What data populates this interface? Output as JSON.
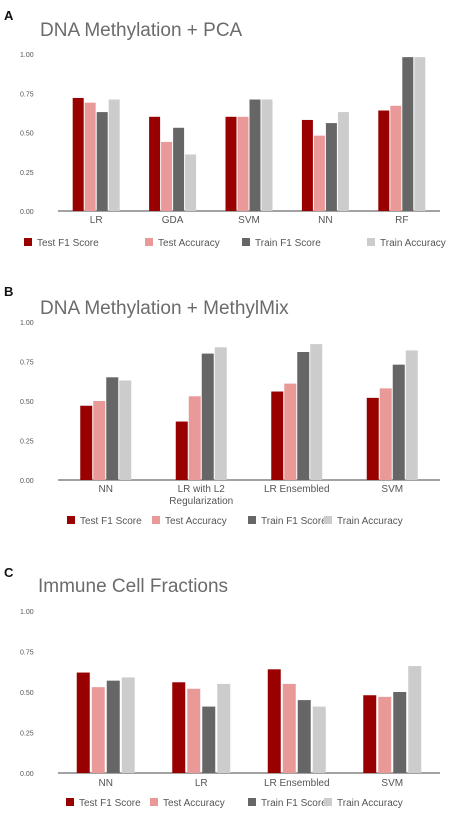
{
  "colors": {
    "Test F1 Score": "#990000",
    "Test Accuracy": "#ea9999",
    "Train F1 Score": "#666666",
    "Train Accuracy": "#cccccc",
    "axis": "#444444",
    "tick_text": "#555555"
  },
  "panels": [
    {
      "letter": "A",
      "title": "DNA Methylation + PCA"
    },
    {
      "letter": "B",
      "title": "DNA Methylation + MethylMix"
    },
    {
      "letter": "C",
      "title": "Immune Cell Fractions"
    }
  ],
  "chart_data": [
    {
      "type": "bar",
      "title": "DNA Methylation + PCA",
      "xlabel": "",
      "ylabel": "",
      "ylim": [
        0,
        1
      ],
      "yticks": [
        "0.00",
        "0.25",
        "0.50",
        "0.75",
        "1.00"
      ],
      "grid": false,
      "legend_position": "bottom",
      "categories": [
        "LR",
        "GDA",
        "SVM",
        "NN",
        "RF"
      ],
      "series": [
        {
          "name": "Test F1 Score",
          "values": [
            0.72,
            0.6,
            0.6,
            0.58,
            0.64
          ]
        },
        {
          "name": "Test Accuracy",
          "values": [
            0.69,
            0.44,
            0.6,
            0.48,
            0.67
          ]
        },
        {
          "name": "Train F1 Score",
          "values": [
            0.63,
            0.53,
            0.71,
            0.56,
            0.98
          ]
        },
        {
          "name": "Train Accuracy",
          "values": [
            0.71,
            0.36,
            0.71,
            0.63,
            0.98
          ]
        }
      ]
    },
    {
      "type": "bar",
      "title": "DNA Methylation + MethylMix",
      "xlabel": "",
      "ylabel": "",
      "ylim": [
        0,
        1
      ],
      "yticks": [
        "0.00",
        "0.25",
        "0.50",
        "0.75",
        "1.00"
      ],
      "grid": false,
      "legend_position": "bottom",
      "categories": [
        "NN",
        "LR with L2\nRegularization",
        "LR Ensembled",
        "SVM"
      ],
      "series": [
        {
          "name": "Test F1 Score",
          "values": [
            0.47,
            0.37,
            0.56,
            0.52
          ]
        },
        {
          "name": "Test Accuracy",
          "values": [
            0.5,
            0.53,
            0.61,
            0.58
          ]
        },
        {
          "name": "Train F1 Score",
          "values": [
            0.65,
            0.8,
            0.81,
            0.73
          ]
        },
        {
          "name": "Train Accuracy",
          "values": [
            0.63,
            0.84,
            0.86,
            0.82
          ]
        }
      ]
    },
    {
      "type": "bar",
      "title": "Immune Cell Fractions",
      "xlabel": "",
      "ylabel": "",
      "ylim": [
        0,
        1
      ],
      "yticks": [
        "0.00",
        "0.25",
        "0.50",
        "0.75",
        "1.00"
      ],
      "grid": false,
      "legend_position": "bottom",
      "categories": [
        "NN",
        "LR",
        "LR Ensembled",
        "SVM"
      ],
      "series": [
        {
          "name": "Test F1 Score",
          "values": [
            0.62,
            0.56,
            0.64,
            0.48
          ]
        },
        {
          "name": "Test Accuracy",
          "values": [
            0.53,
            0.52,
            0.55,
            0.47
          ]
        },
        {
          "name": "Train F1 Score",
          "values": [
            0.57,
            0.41,
            0.45,
            0.5
          ]
        },
        {
          "name": "Train Accuracy",
          "values": [
            0.59,
            0.55,
            0.41,
            0.66
          ]
        }
      ]
    }
  ]
}
